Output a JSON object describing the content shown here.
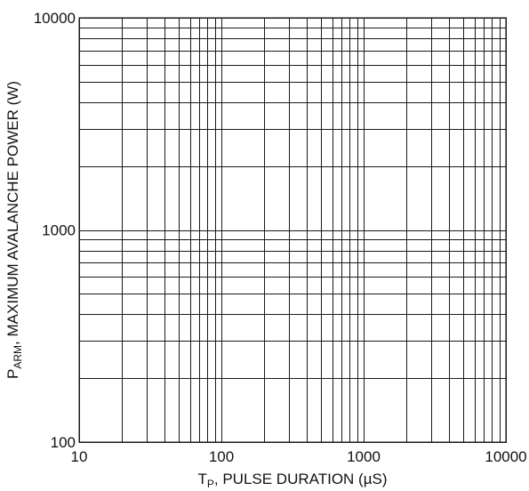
{
  "chart_data": {
    "type": "line",
    "title": "",
    "series": [],
    "xscale": "log",
    "yscale": "log",
    "xlim": [
      10,
      10000
    ],
    "ylim": [
      100,
      10000
    ],
    "grid": true,
    "x_ticks": [
      "10",
      "100",
      "1000",
      "10000"
    ],
    "y_ticks": [
      "100",
      "1000",
      "10000"
    ],
    "xlabel": {
      "main": "T",
      "sub": "P",
      "rest": ", PULSE DURATION (µS)"
    },
    "ylabel": {
      "main": "P",
      "sub": "ARM",
      "rest": ", MAXIMUM AVALANCHE POWER (W)"
    }
  }
}
